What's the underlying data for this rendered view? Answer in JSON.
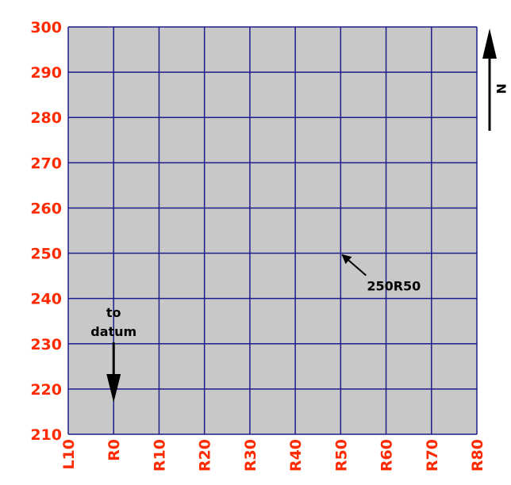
{
  "colors": {
    "grid_fill": "#c8c8c8",
    "grid_line": "#1c1c8c",
    "tick_label": "#ff2a00",
    "annotation": "#000000"
  },
  "chart_data": {
    "type": "table",
    "x_ticks": [
      "L10",
      "R0",
      "R10",
      "R20",
      "R30",
      "R40",
      "R50",
      "R60",
      "R70",
      "R80"
    ],
    "y_ticks": [
      "300",
      "290",
      "280",
      "270",
      "260",
      "250",
      "240",
      "230",
      "220",
      "210"
    ],
    "annotations": [
      {
        "label": "250R50",
        "target": {
          "x": "R50",
          "y": 250
        }
      }
    ],
    "datum_note": {
      "line1": "to",
      "line2": "datum",
      "x": "R0",
      "direction": "down"
    },
    "north_arrow": {
      "label": "N"
    }
  }
}
